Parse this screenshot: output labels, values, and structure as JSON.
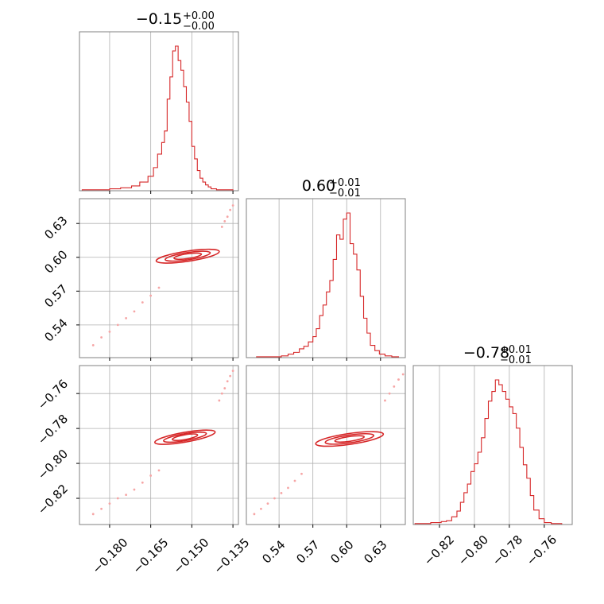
{
  "colors": {
    "line": "#d62728",
    "points": "#f6a5a5",
    "grid": "#b0b0b0",
    "frame": "#808080"
  },
  "chart_data": [
    {
      "type": "histogram",
      "title": {
        "value": "−0.15",
        "sup": "+0.00",
        "sub": "−0.00"
      },
      "xlim": [
        -0.191,
        -0.133
      ],
      "grid_x": [
        -0.18,
        -0.165,
        -0.15,
        -0.135
      ],
      "bins": {
        "x": [
          -0.19,
          -0.185,
          -0.18,
          -0.176,
          -0.172,
          -0.169,
          -0.166,
          -0.164,
          -0.1625,
          -0.161,
          -0.16,
          -0.159,
          -0.158,
          -0.157,
          -0.156,
          -0.155,
          -0.154,
          -0.153,
          -0.152,
          -0.151,
          -0.15,
          -0.149,
          -0.148,
          -0.147,
          -0.146,
          -0.145,
          -0.144,
          -0.143,
          -0.141,
          -0.138,
          -0.135
        ],
        "counts": [
          1,
          1,
          2,
          3,
          5,
          9,
          15,
          24,
          38,
          50,
          62,
          95,
          118,
          145,
          150,
          135,
          125,
          108,
          92,
          72,
          46,
          33,
          21,
          13,
          9,
          6,
          4,
          2,
          1,
          1,
          0
        ]
      }
    },
    {
      "type": "scatter-contour",
      "xlim": [
        -0.191,
        -0.133
      ],
      "ylim": [
        0.511,
        0.652
      ],
      "grid_x": [
        -0.18,
        -0.165,
        -0.15,
        -0.135
      ],
      "grid_y": [
        0.54,
        0.57,
        0.6,
        0.63
      ],
      "y_tick_labels": [
        "0.54",
        "0.57",
        "0.60",
        "0.63"
      ],
      "y_ticks": [
        0.54,
        0.57,
        0.6,
        0.63
      ],
      "points": [
        [
          -0.186,
          0.522
        ],
        [
          -0.183,
          0.529
        ],
        [
          -0.18,
          0.534
        ],
        [
          -0.177,
          0.54
        ],
        [
          -0.174,
          0.546
        ],
        [
          -0.171,
          0.552
        ],
        [
          -0.168,
          0.56
        ],
        [
          -0.165,
          0.566
        ],
        [
          -0.162,
          0.573
        ],
        [
          -0.139,
          0.627
        ],
        [
          -0.138,
          0.632
        ],
        [
          -0.137,
          0.636
        ],
        [
          -0.136,
          0.642
        ],
        [
          -0.135,
          0.646
        ]
      ],
      "contours": [
        {
          "cx": -0.1515,
          "cy": 0.601,
          "rx": 0.0115,
          "ry": 0.0042
        },
        {
          "cx": -0.1515,
          "cy": 0.601,
          "rx": 0.0082,
          "ry": 0.003
        },
        {
          "cx": -0.1515,
          "cy": 0.601,
          "rx": 0.005,
          "ry": 0.0018
        }
      ]
    },
    {
      "type": "histogram",
      "title": {
        "value": "0.60",
        "sup": "+0.01",
        "sub": "−0.01"
      },
      "xlim": [
        0.511,
        0.652
      ],
      "grid_x": [
        0.54,
        0.57,
        0.6,
        0.63
      ],
      "bins": {
        "x": [
          0.512,
          0.52,
          0.528,
          0.535,
          0.542,
          0.548,
          0.553,
          0.558,
          0.562,
          0.566,
          0.57,
          0.573,
          0.576,
          0.579,
          0.582,
          0.585,
          0.588,
          0.591,
          0.594,
          0.597,
          0.6,
          0.603,
          0.606,
          0.609,
          0.612,
          0.615,
          0.618,
          0.621,
          0.625,
          0.629,
          0.634,
          0.64,
          0.646
        ],
        "counts": [
          0,
          1,
          1,
          1,
          2,
          4,
          6,
          10,
          13,
          18,
          24,
          33,
          48,
          60,
          75,
          88,
          112,
          140,
          135,
          158,
          165,
          130,
          118,
          100,
          70,
          45,
          28,
          14,
          8,
          4,
          2,
          1,
          0
        ]
      }
    },
    {
      "type": "scatter-contour",
      "xlim": [
        -0.191,
        -0.133
      ],
      "ylim": [
        -0.835,
        -0.744
      ],
      "grid_x": [
        -0.18,
        -0.165,
        -0.15,
        -0.135
      ],
      "grid_y": [
        -0.82,
        -0.8,
        -0.78,
        -0.76
      ],
      "x_tick_labels": [
        "−0.180",
        "−0.165",
        "−0.150",
        "−0.135"
      ],
      "x_ticks": [
        -0.18,
        -0.165,
        -0.15,
        -0.135
      ],
      "y_tick_labels": [
        "−0.82",
        "−0.80",
        "−0.78",
        "−0.76"
      ],
      "y_ticks": [
        -0.82,
        -0.8,
        -0.78,
        -0.76
      ],
      "points": [
        [
          -0.186,
          -0.829
        ],
        [
          -0.183,
          -0.826
        ],
        [
          -0.18,
          -0.823
        ],
        [
          -0.177,
          -0.82
        ],
        [
          -0.174,
          -0.818
        ],
        [
          -0.171,
          -0.815
        ],
        [
          -0.168,
          -0.811
        ],
        [
          -0.165,
          -0.807
        ],
        [
          -0.162,
          -0.804
        ],
        [
          -0.14,
          -0.764
        ],
        [
          -0.139,
          -0.76
        ],
        [
          -0.138,
          -0.757
        ],
        [
          -0.137,
          -0.753
        ],
        [
          -0.136,
          -0.75
        ],
        [
          -0.135,
          -0.747
        ]
      ],
      "contours": [
        {
          "cx": -0.1525,
          "cy": -0.785,
          "rx": 0.011,
          "ry": 0.003
        },
        {
          "cx": -0.1525,
          "cy": -0.785,
          "rx": 0.0078,
          "ry": 0.0021
        },
        {
          "cx": -0.1525,
          "cy": -0.785,
          "rx": 0.0046,
          "ry": 0.0013
        }
      ]
    },
    {
      "type": "scatter-contour",
      "xlim": [
        0.511,
        0.652
      ],
      "ylim": [
        -0.835,
        -0.744
      ],
      "grid_x": [
        0.54,
        0.57,
        0.6,
        0.63
      ],
      "grid_y": [
        -0.82,
        -0.8,
        -0.78,
        -0.76
      ],
      "x_tick_labels": [
        "0.54",
        "0.57",
        "0.60",
        "0.63"
      ],
      "x_ticks": [
        0.54,
        0.57,
        0.6,
        0.63
      ],
      "points": [
        [
          0.518,
          -0.829
        ],
        [
          0.524,
          -0.826
        ],
        [
          0.53,
          -0.823
        ],
        [
          0.536,
          -0.82
        ],
        [
          0.542,
          -0.817
        ],
        [
          0.548,
          -0.814
        ],
        [
          0.554,
          -0.81
        ],
        [
          0.56,
          -0.806
        ],
        [
          0.634,
          -0.764
        ],
        [
          0.638,
          -0.76
        ],
        [
          0.642,
          -0.756
        ],
        [
          0.646,
          -0.752
        ],
        [
          0.65,
          -0.749
        ]
      ],
      "contours": [
        {
          "cx": 0.6025,
          "cy": -0.786,
          "rx": 0.03,
          "ry": 0.0028
        },
        {
          "cx": 0.6025,
          "cy": -0.786,
          "rx": 0.0215,
          "ry": 0.002
        },
        {
          "cx": 0.6025,
          "cy": -0.786,
          "rx": 0.013,
          "ry": 0.0012
        }
      ]
    },
    {
      "type": "histogram",
      "title": {
        "value": "−0.78",
        "sup": "+0.01",
        "sub": "−0.01"
      },
      "xlim": [
        -0.835,
        -0.744
      ],
      "grid_x": [
        -0.82,
        -0.8,
        -0.78,
        -0.76
      ],
      "x_tick_labels": [
        "−0.82",
        "−0.80",
        "−0.78",
        "−0.76"
      ],
      "x_ticks": [
        -0.82,
        -0.8,
        -0.78,
        -0.76
      ],
      "bins": {
        "x": [
          -0.834,
          -0.829,
          -0.825,
          -0.822,
          -0.819,
          -0.816,
          -0.813,
          -0.81,
          -0.808,
          -0.806,
          -0.804,
          -0.802,
          -0.8,
          -0.798,
          -0.796,
          -0.794,
          -0.792,
          -0.79,
          -0.788,
          -0.786,
          -0.784,
          -0.782,
          -0.78,
          -0.778,
          -0.776,
          -0.774,
          -0.772,
          -0.77,
          -0.768,
          -0.766,
          -0.763,
          -0.76,
          -0.756,
          -0.75
        ],
        "counts": [
          1,
          1,
          2,
          2,
          3,
          4,
          8,
          14,
          23,
          33,
          42,
          55,
          63,
          75,
          90,
          110,
          128,
          138,
          150,
          145,
          138,
          130,
          122,
          115,
          100,
          80,
          62,
          48,
          30,
          15,
          6,
          2,
          1,
          0
        ]
      }
    }
  ]
}
